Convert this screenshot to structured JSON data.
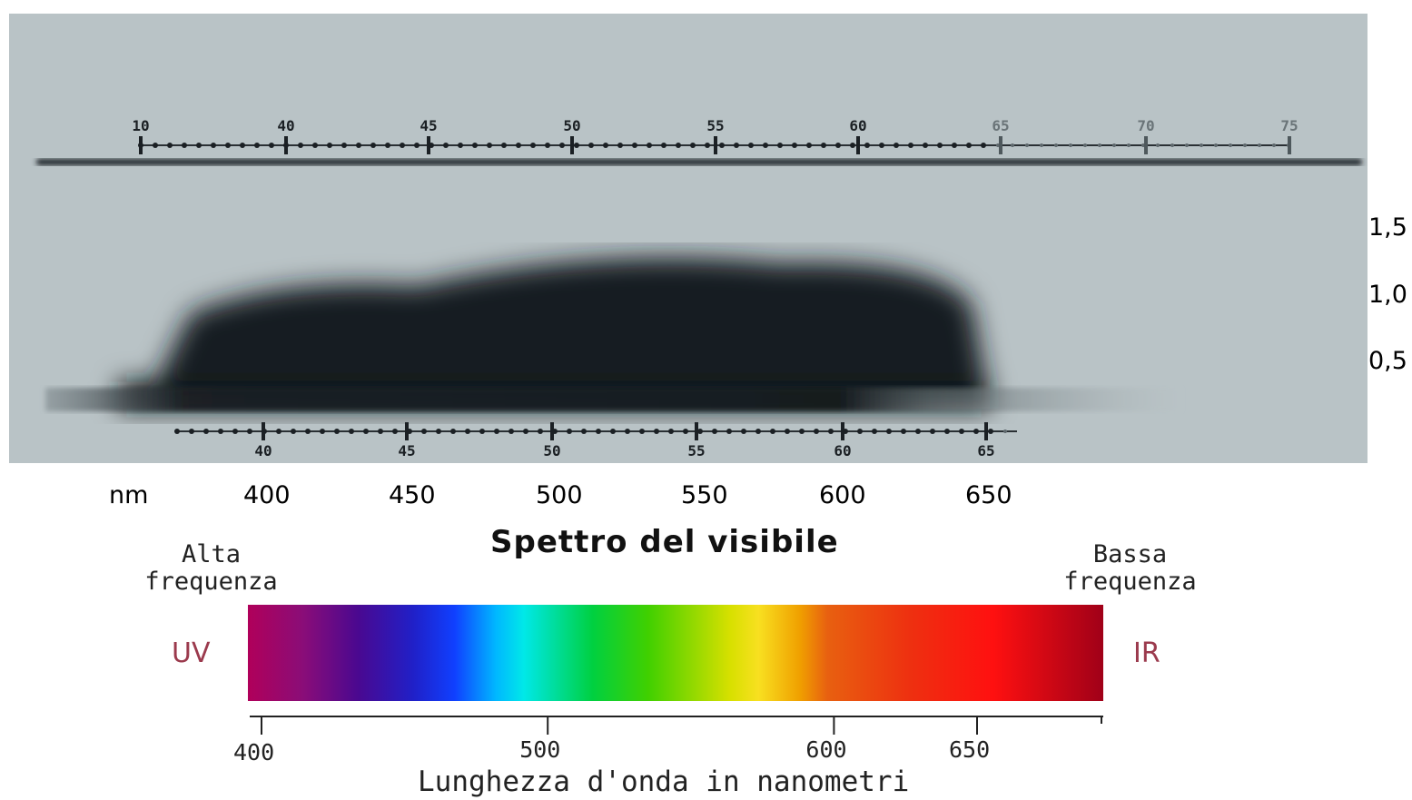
{
  "photo_scale": {
    "top_marks": [
      "10",
      "40",
      "45",
      "50",
      "55",
      "60",
      "65",
      "70",
      "75"
    ],
    "bottom_marks": [
      "40",
      "45",
      "50",
      "55",
      "60",
      "65"
    ]
  },
  "density_ticks": [
    "1,5",
    "1,0",
    "0,5"
  ],
  "nm_scale": {
    "unit": "nm",
    "values": [
      "400",
      "450",
      "500",
      "550",
      "600",
      "650"
    ]
  },
  "title": "Spettro del visibile",
  "high_freq": [
    "Alta",
    "frequenza"
  ],
  "low_freq": [
    "Bassa",
    "frequenza"
  ],
  "uv_label": "UV",
  "ir_label": "IR",
  "colors": {
    "uv_label": "#9b3a4d",
    "ir_label": "#9b3a4d",
    "photo_bg": "#b9c3c6"
  },
  "spectrum_bar": {
    "wavelength_range": [
      390,
      700
    ],
    "stops": [
      {
        "nm": 390,
        "color": "#b0005a"
      },
      {
        "nm": 410,
        "color": "#8a0d78"
      },
      {
        "nm": 430,
        "color": "#4a0890"
      },
      {
        "nm": 450,
        "color": "#2020c8"
      },
      {
        "nm": 465,
        "color": "#1040ff"
      },
      {
        "nm": 480,
        "color": "#00b8ff"
      },
      {
        "nm": 490,
        "color": "#00e8e8"
      },
      {
        "nm": 515,
        "color": "#00d040"
      },
      {
        "nm": 535,
        "color": "#40d000"
      },
      {
        "nm": 565,
        "color": "#d8e000"
      },
      {
        "nm": 575,
        "color": "#f8e020"
      },
      {
        "nm": 590,
        "color": "#f0a000"
      },
      {
        "nm": 600,
        "color": "#e86010"
      },
      {
        "nm": 630,
        "color": "#ee3010"
      },
      {
        "nm": 660,
        "color": "#ff1010"
      },
      {
        "nm": 700,
        "color": "#a00018"
      }
    ]
  },
  "wavelength_axis": {
    "tick_values": [
      400,
      500,
      600,
      650
    ],
    "labels": [
      "400",
      "500",
      "600",
      "650"
    ],
    "title": "Lunghezza d'onda in nanometri"
  }
}
